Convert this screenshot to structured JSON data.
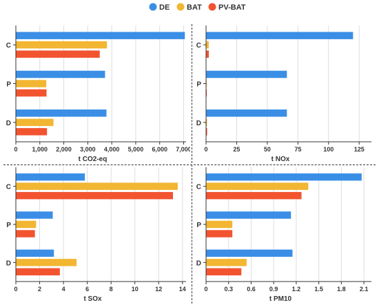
{
  "chart_data": [
    {
      "type": "bar",
      "orientation": "horizontal",
      "categories": [
        "C",
        "P",
        "D"
      ],
      "xlabel": "t CO2-eq",
      "xlim": [
        0,
        7100
      ],
      "ticks": [
        0,
        1000,
        2000,
        3000,
        4000,
        5000,
        6000,
        7000
      ],
      "tick_labels": [
        "0",
        "1,000",
        "2,000",
        "3,000",
        "4,000",
        "5,000",
        "6,000",
        "7,000"
      ],
      "series": [
        {
          "name": "DE",
          "values": [
            7050,
            3720,
            3780
          ]
        },
        {
          "name": "BAT",
          "values": [
            3800,
            1270,
            1570
          ]
        },
        {
          "name": "PV-BAT",
          "values": [
            3500,
            1280,
            1300
          ]
        }
      ]
    },
    {
      "type": "bar",
      "orientation": "horizontal",
      "categories": [
        "C",
        "P",
        "D"
      ],
      "xlabel": "t NOx",
      "xlim": [
        0,
        135
      ],
      "ticks": [
        0,
        25,
        50,
        75,
        100,
        125
      ],
      "tick_labels": [
        "0",
        "25",
        "50",
        "75",
        "100",
        "125"
      ],
      "series": [
        {
          "name": "DE",
          "values": [
            120,
            66,
            66
          ]
        },
        {
          "name": "BAT",
          "values": [
            2.2,
            0.5,
            0.8
          ]
        },
        {
          "name": "PV-BAT",
          "values": [
            2.3,
            0.6,
            0.9
          ]
        }
      ]
    },
    {
      "type": "bar",
      "orientation": "horizontal",
      "categories": [
        "C",
        "P",
        "D"
      ],
      "xlabel": "t SOx",
      "xlim": [
        0,
        14.3
      ],
      "ticks": [
        0,
        2,
        4,
        6,
        8,
        10,
        12,
        14
      ],
      "tick_labels": [
        "0",
        "2",
        "4",
        "6",
        "8",
        "10",
        "12",
        "14"
      ],
      "series": [
        {
          "name": "DE",
          "values": [
            5.8,
            3.1,
            3.2
          ]
        },
        {
          "name": "BAT",
          "values": [
            13.6,
            1.7,
            5.1
          ]
        },
        {
          "name": "PV-BAT",
          "values": [
            13.2,
            1.6,
            3.7
          ]
        }
      ]
    },
    {
      "type": "bar",
      "orientation": "horizontal",
      "categories": [
        "C",
        "P",
        "D"
      ],
      "xlabel": "t PM10",
      "xlim": [
        0,
        2.2
      ],
      "ticks": [
        0,
        0.3,
        0.6,
        0.9,
        1.2,
        1.5,
        1.8,
        2.1
      ],
      "tick_labels": [
        "0",
        "0.3",
        "0.6",
        "0.9",
        "1.2",
        "1.5",
        "1.8",
        "2.1"
      ],
      "series": [
        {
          "name": "DE",
          "values": [
            2.07,
            1.13,
            1.15
          ]
        },
        {
          "name": "BAT",
          "values": [
            1.36,
            0.35,
            0.54
          ]
        },
        {
          "name": "PV-BAT",
          "values": [
            1.27,
            0.35,
            0.47
          ]
        }
      ]
    }
  ],
  "legend": {
    "items": [
      {
        "label": "DE",
        "color": "#3a8ee6"
      },
      {
        "label": "BAT",
        "color": "#f2b632"
      },
      {
        "label": "PV-BAT",
        "color": "#f25430"
      }
    ]
  },
  "colors": {
    "grid": "#dddddd",
    "axis": "#333333",
    "text": "#333333"
  }
}
